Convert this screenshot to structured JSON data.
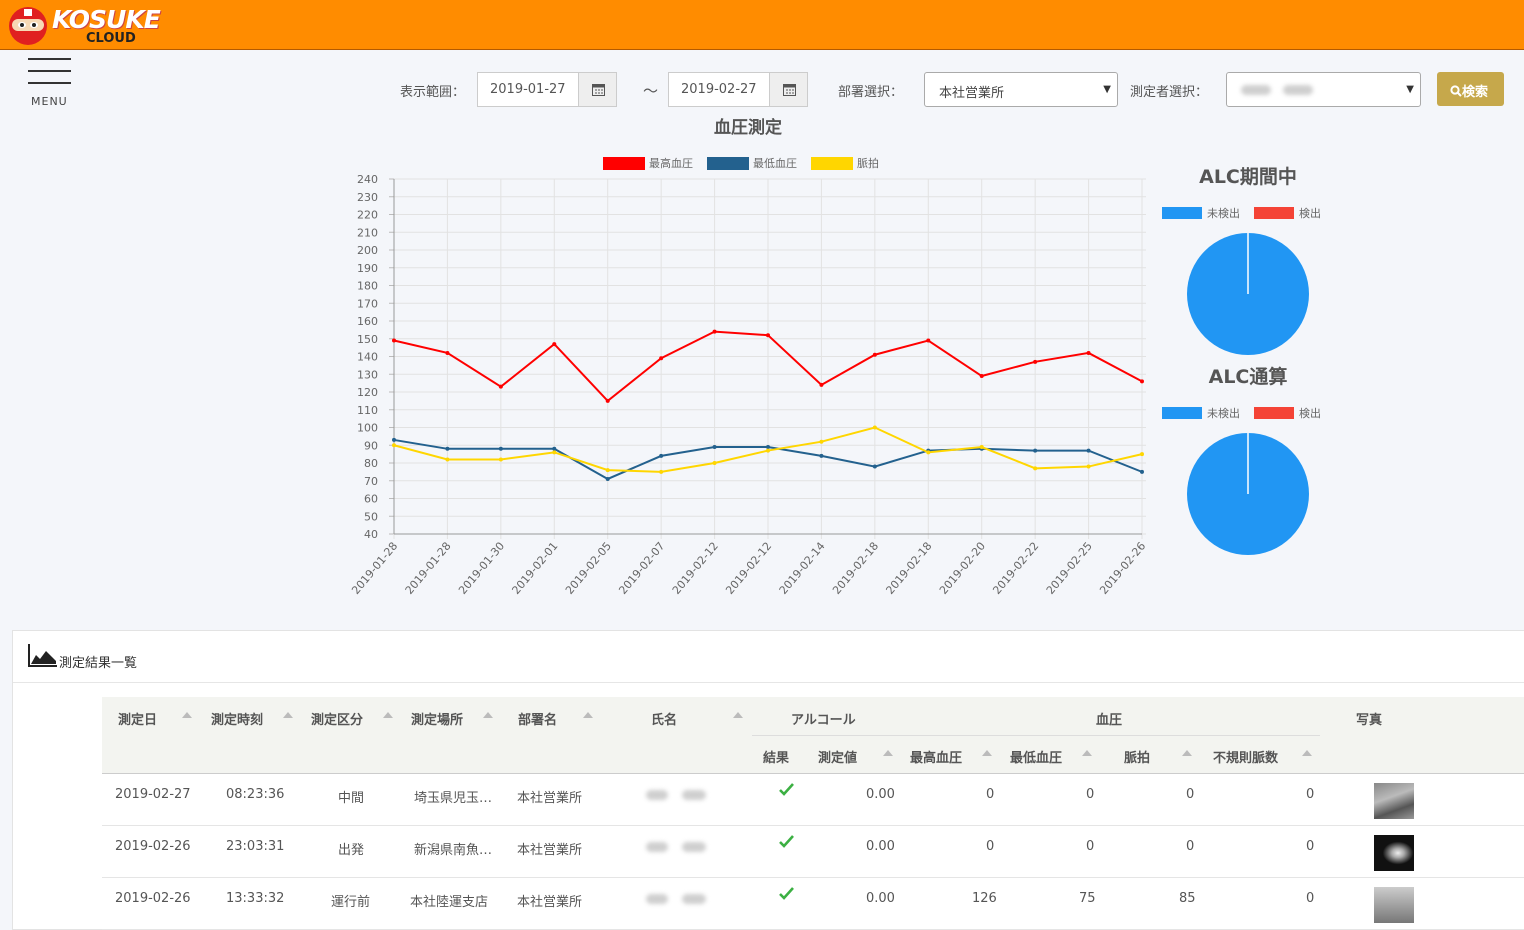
{
  "brand": {
    "name": "KOSUKE",
    "sub": "CLOUD"
  },
  "menu": {
    "label": "MENU"
  },
  "filters": {
    "range_label": "表示範囲：",
    "date_from": "2019-01-27",
    "tilde": "～",
    "date_to": "2019-02-27",
    "dept_label": "部署選択：",
    "dept_value": "本社営業所",
    "person_label": "測定者選択：",
    "search_label": "検索"
  },
  "line_chart": {
    "type": "line",
    "title": "血圧測定",
    "ylim": [
      40,
      240
    ],
    "ytick_step": 10,
    "categories": [
      "2019-01-28",
      "2019-01-28",
      "2019-01-30",
      "2019-02-01",
      "2019-02-05",
      "2019-02-07",
      "2019-02-12",
      "2019-02-12",
      "2019-02-14",
      "2019-02-18",
      "2019-02-18",
      "2019-02-20",
      "2019-02-22",
      "2019-02-25",
      "2019-02-26"
    ],
    "series": [
      {
        "name": "最高血圧",
        "color": "#ff0000",
        "values": [
          149,
          142,
          123,
          147,
          115,
          139,
          154,
          152,
          124,
          141,
          149,
          129,
          137,
          142,
          126
        ]
      },
      {
        "name": "最低血圧",
        "color": "#23618e",
        "values": [
          93,
          88,
          88,
          88,
          71,
          84,
          89,
          89,
          84,
          78,
          87,
          88,
          87,
          87,
          75
        ]
      },
      {
        "name": "脈拍",
        "color": "#ffd600",
        "values": [
          90,
          82,
          82,
          86,
          76,
          75,
          80,
          87,
          92,
          100,
          86,
          89,
          77,
          78,
          85
        ]
      }
    ]
  },
  "pie_charts": [
    {
      "title": "ALC期間中",
      "type": "pie",
      "legend": [
        {
          "label": "未検出",
          "color": "#2196f3"
        },
        {
          "label": "検出",
          "color": "#f44336"
        }
      ],
      "values": [
        100,
        0
      ]
    },
    {
      "title": "ALC通算",
      "type": "pie",
      "legend": [
        {
          "label": "未検出",
          "color": "#2196f3"
        },
        {
          "label": "検出",
          "color": "#f44336"
        }
      ],
      "values": [
        100,
        0
      ]
    }
  ],
  "results": {
    "title": "測定結果一覧",
    "headers": {
      "date": "測定日",
      "time": "測定時刻",
      "type": "測定区分",
      "place": "測定場所",
      "dept": "部署名",
      "name": "氏名",
      "alcohol": "アルコール",
      "bp": "血圧",
      "photo": "写真",
      "result": "結果",
      "value": "測定値",
      "sys": "最高血圧",
      "dia": "最低血圧",
      "pulse": "脈拍",
      "irregular": "不規則脈数"
    },
    "rows": [
      {
        "date": "2019-02-27",
        "time": "08:23:36",
        "type": "中間",
        "place": "埼玉県児玉…",
        "dept": "本社営業所",
        "value": "0.00",
        "sys": "0",
        "dia": "0",
        "pulse": "0",
        "irregular": "0"
      },
      {
        "date": "2019-02-26",
        "time": "23:03:31",
        "type": "出発",
        "place": "新潟県南魚…",
        "dept": "本社営業所",
        "value": "0.00",
        "sys": "0",
        "dia": "0",
        "pulse": "0",
        "irregular": "0"
      },
      {
        "date": "2019-02-26",
        "time": "13:33:32",
        "type": "運行前",
        "place": "本社陸運支店",
        "dept": "本社営業所",
        "value": "0.00",
        "sys": "126",
        "dia": "75",
        "pulse": "85",
        "irregular": "0"
      }
    ]
  }
}
